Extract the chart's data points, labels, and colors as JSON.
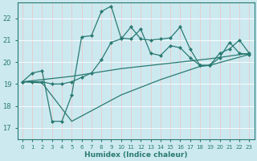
{
  "bg_color": "#cce9f0",
  "grid_color": "#b8dde6",
  "line_color": "#2a7a72",
  "xlabel": "Humidex (Indice chaleur)",
  "xlim": [
    -0.5,
    23.5
  ],
  "ylim": [
    16.5,
    22.7
  ],
  "yticks": [
    17,
    18,
    19,
    20,
    21,
    22
  ],
  "xticks": [
    0,
    1,
    2,
    3,
    4,
    5,
    6,
    7,
    8,
    9,
    10,
    11,
    12,
    13,
    14,
    15,
    16,
    17,
    18,
    19,
    20,
    21,
    22,
    23
  ],
  "line_top_x": [
    0,
    1,
    2,
    3,
    4,
    5,
    6,
    7,
    8,
    9,
    10,
    11,
    12,
    13,
    14,
    15,
    16,
    17,
    18,
    19,
    20,
    21,
    22,
    23
  ],
  "line_top_y": [
    19.1,
    19.5,
    19.6,
    17.3,
    17.3,
    18.5,
    21.15,
    21.2,
    22.3,
    22.55,
    21.1,
    21.05,
    21.5,
    20.4,
    20.3,
    20.75,
    20.65,
    20.2,
    19.85,
    19.85,
    20.2,
    20.9,
    20.4,
    20.35
  ],
  "line_mid1_x": [
    0,
    1,
    2,
    3,
    4,
    5,
    6,
    7,
    8,
    9,
    10,
    11,
    12,
    13,
    14,
    15,
    16,
    17,
    18,
    19,
    20,
    21,
    22,
    23
  ],
  "line_mid1_y": [
    19.1,
    19.1,
    19.1,
    19.0,
    19.0,
    19.1,
    19.3,
    19.5,
    20.1,
    20.9,
    21.05,
    21.6,
    21.05,
    21.0,
    21.05,
    21.1,
    21.6,
    20.6,
    19.85,
    19.85,
    20.4,
    20.6,
    21.0,
    20.4
  ],
  "line_mid2_x": [
    0,
    2,
    5,
    10,
    14,
    18,
    19,
    23
  ],
  "line_mid2_y": [
    19.1,
    19.2,
    19.35,
    19.7,
    19.9,
    20.1,
    20.15,
    20.4
  ],
  "line_bot_x": [
    0,
    2,
    5,
    10,
    14,
    18,
    19,
    23
  ],
  "line_bot_y": [
    19.1,
    19.05,
    17.3,
    18.5,
    19.2,
    19.8,
    19.85,
    20.35
  ],
  "markers_top_x": [
    0,
    1,
    2,
    3,
    4,
    5,
    6,
    7,
    8,
    9,
    10,
    11,
    12,
    13,
    14,
    15,
    16,
    17,
    18,
    19,
    20,
    21,
    22,
    23
  ],
  "markers_top_y": [
    19.1,
    19.5,
    19.6,
    17.3,
    17.3,
    18.5,
    21.15,
    21.2,
    22.3,
    22.55,
    21.1,
    21.05,
    21.5,
    20.4,
    20.3,
    20.75,
    20.65,
    20.2,
    19.85,
    19.85,
    20.2,
    20.9,
    20.4,
    20.35
  ]
}
